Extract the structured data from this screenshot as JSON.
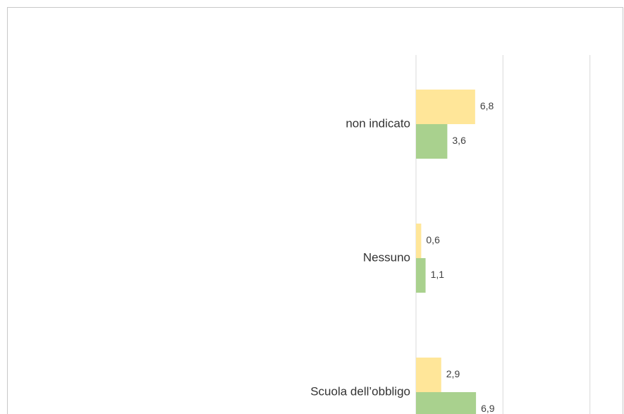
{
  "chart_data": {
    "type": "bar",
    "orientation": "horizontal",
    "categories": [
      "non indicato",
      "Nessuno",
      "Scuola dell’obbligo"
    ],
    "series": [
      {
        "color": "#ffe699",
        "values": [
          6.8,
          0.6,
          2.9
        ],
        "value_labels": [
          "6,8",
          "0,6",
          "2,9"
        ]
      },
      {
        "color": "#a9d18e",
        "values": [
          3.6,
          1.1,
          6.9
        ],
        "value_labels": [
          "3,6",
          "1,1",
          "6,9"
        ]
      }
    ],
    "xlim": [
      0,
      24
    ],
    "xticks": [
      0,
      10,
      20
    ],
    "grid": true
  }
}
